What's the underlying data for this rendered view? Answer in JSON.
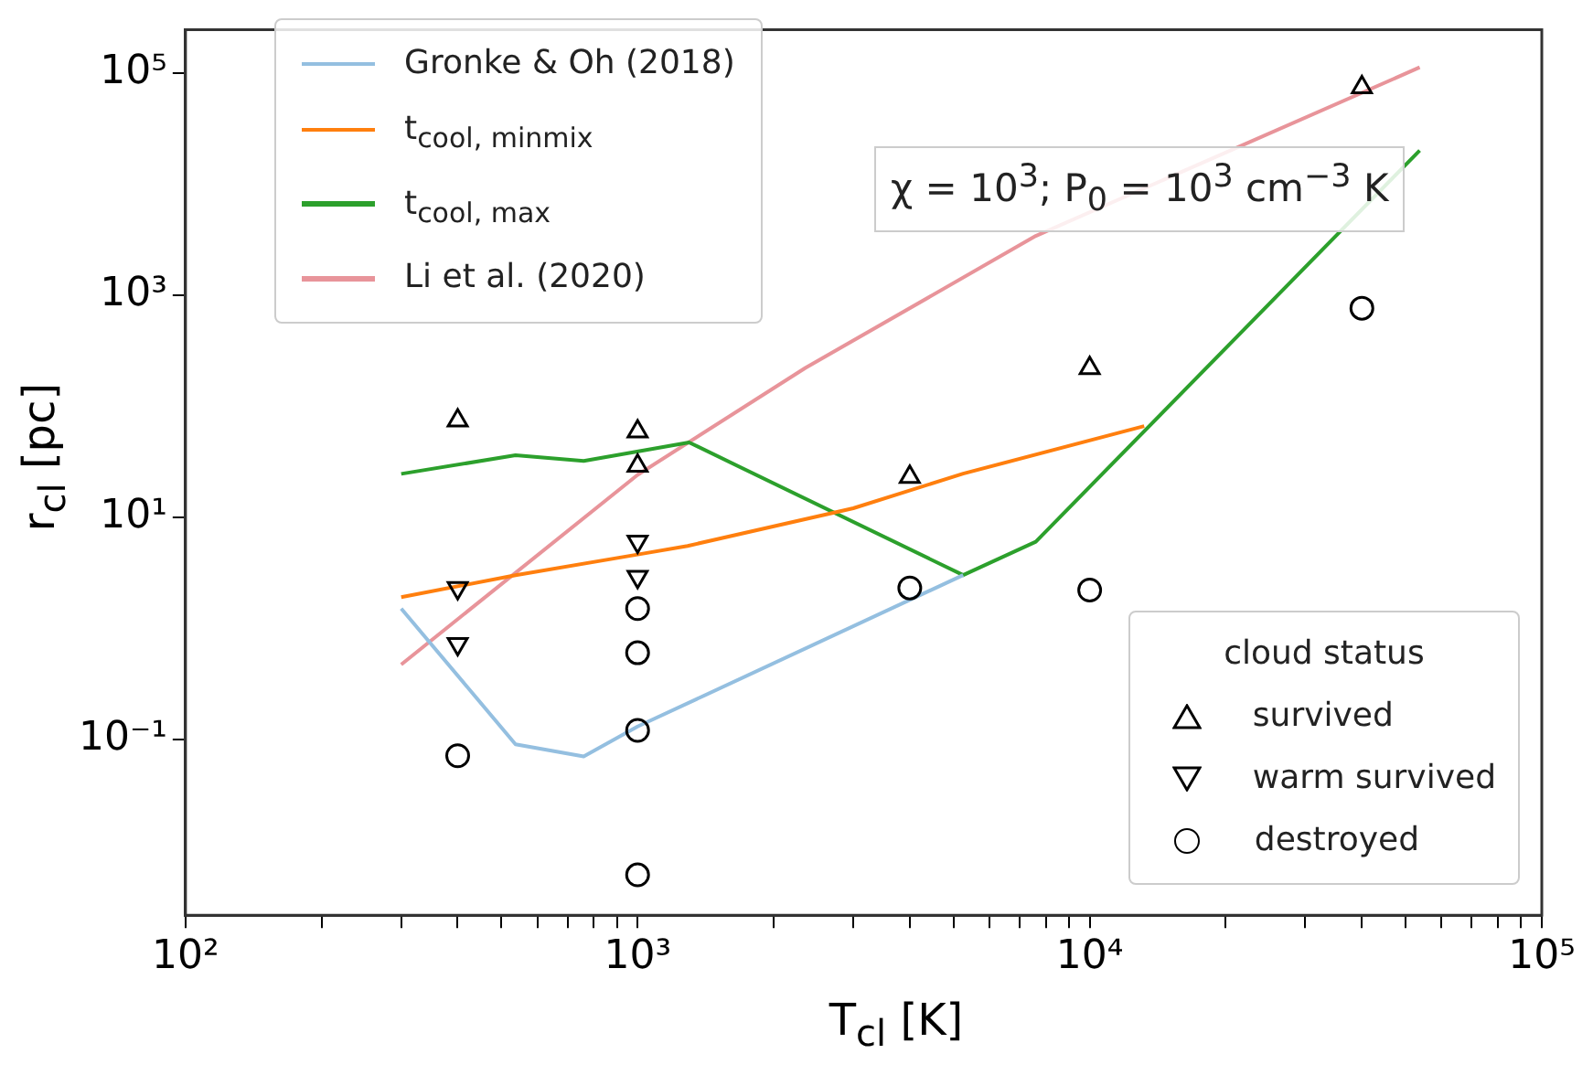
{
  "chart_data": {
    "type": "line",
    "xlabel": "T$_{cl}$ [K]",
    "ylabel": "r$_{cl}$ [pc]",
    "legend_title": "cloud status",
    "log": "xy",
    "grid": false,
    "legend": "top left",
    "xlim": [
      100,
      100000
    ],
    "ylim": [
      0.0026,
      245000
    ],
    "xticks": [
      {
        "value": 100,
        "label": "10²"
      },
      {
        "value": 200,
        "label": null
      },
      {
        "value": 300,
        "label": null
      },
      {
        "value": 400,
        "label": null
      },
      {
        "value": 500,
        "label": null
      },
      {
        "value": 600,
        "label": null
      },
      {
        "value": 700,
        "label": null
      },
      {
        "value": 800,
        "label": null
      },
      {
        "value": 900,
        "label": null
      },
      {
        "value": 1000,
        "label": "10³"
      },
      {
        "value": 2000,
        "label": null
      },
      {
        "value": 3000,
        "label": null
      },
      {
        "value": 4000,
        "label": null
      },
      {
        "value": 5000,
        "label": null
      },
      {
        "value": 6000,
        "label": null
      },
      {
        "value": 7000,
        "label": null
      },
      {
        "value": 8000,
        "label": null
      },
      {
        "value": 9000,
        "label": null
      },
      {
        "value": 10000,
        "label": "10⁴"
      },
      {
        "value": 20000,
        "label": null
      },
      {
        "value": 30000,
        "label": null
      },
      {
        "value": 40000,
        "label": null
      },
      {
        "value": 50000,
        "label": null
      },
      {
        "value": 60000,
        "label": null
      },
      {
        "value": 70000,
        "label": null
      },
      {
        "value": 80000,
        "label": null
      },
      {
        "value": 90000,
        "label": null
      },
      {
        "value": 100000,
        "label": "10⁵"
      }
    ],
    "yticks": [
      {
        "value": 0.1,
        "label": "10⁻¹"
      },
      {
        "value": 10,
        "label": "10¹"
      },
      {
        "value": 1000,
        "label": "10³"
      },
      {
        "value": 100000,
        "label": "10⁵"
      }
    ],
    "annotations": [
      "χ = 10$^{3}$; P$_{0}$ = 10$^{3}$ cm$^{−3}$ K"
    ],
    "series": [
      {
        "name": "Gronke & Oh (2018)",
        "color": "#94bfe0",
        "x": [
          300,
          537,
          760,
          1000,
          5250
        ],
        "values": [
          1.5,
          0.09,
          0.07,
          0.13,
          3.0
        ]
      },
      {
        "name": "t$_{cool, minmix}$",
        "color": "#ff7f0e",
        "x": [
          300,
          537,
          1000,
          1290,
          3000,
          5250,
          13200
        ],
        "values": [
          1.9,
          3,
          4.6,
          5.5,
          12,
          24.6,
          66
        ]
      },
      {
        "name": "t$_{cool, max}$",
        "color": "#2ca02c",
        "x": [
          300,
          537,
          760,
          1300,
          5250,
          7600,
          53700
        ],
        "values": [
          24.5,
          36,
          32,
          47,
          3.0,
          6,
          20000
        ]
      },
      {
        "name": "Li et al. (2020)",
        "color": "#e8949a",
        "x": [
          300,
          1000,
          2350,
          7600,
          53700
        ],
        "values": [
          0.47,
          24,
          220,
          3400,
          112000
        ]
      },
      {
        "name": "survived",
        "type": "scatter",
        "marker": "triangle",
        "color": "#000000",
        "x": [
          400,
          1000,
          1000,
          4000,
          10000,
          40000
        ],
        "values": [
          74,
          59,
          29,
          23,
          219,
          74000
        ]
      },
      {
        "name": "warm survived",
        "type": "scatter",
        "marker": "triangle-down",
        "color": "#000000",
        "x": [
          400,
          400,
          1000,
          1000
        ],
        "values": [
          2.3,
          0.72,
          6,
          2.9
        ]
      },
      {
        "name": "destroyed",
        "type": "scatter",
        "marker": "circle",
        "color": "#000000",
        "x": [
          400,
          1000,
          1000,
          1000,
          1000,
          4000,
          10000,
          40000
        ],
        "values": [
          0.071,
          1.5,
          0.6,
          0.12,
          0.006,
          2.3,
          2.2,
          760
        ]
      }
    ]
  }
}
